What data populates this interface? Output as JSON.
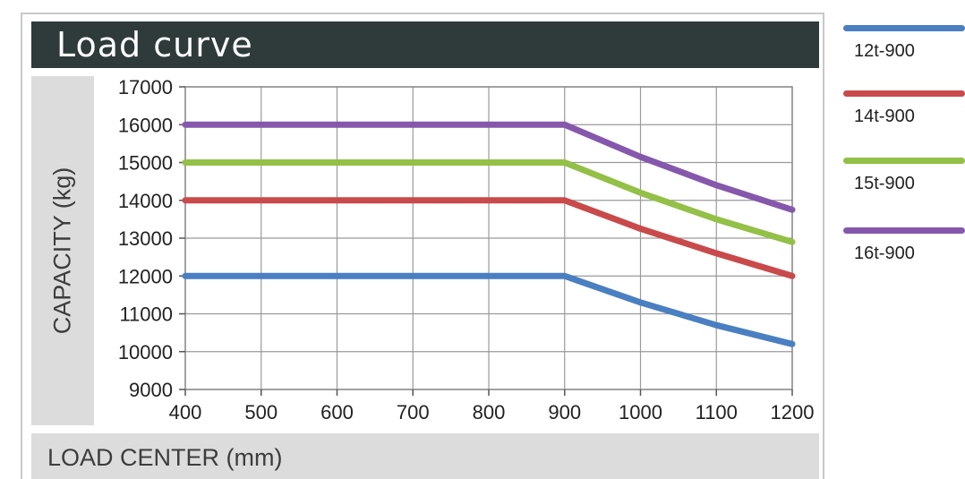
{
  "chart_data": {
    "type": "line",
    "title": "Load curve",
    "xlabel": "LOAD CENTER (mm)",
    "ylabel": "CAPACITY (kg)",
    "xlim": [
      400,
      1200
    ],
    "ylim": [
      9000,
      17000
    ],
    "x_ticks": [
      400,
      500,
      600,
      700,
      800,
      900,
      1000,
      1100,
      1200
    ],
    "y_ticks": [
      9000,
      10000,
      11000,
      12000,
      13000,
      14000,
      15000,
      16000,
      17000
    ],
    "x_tick_labels": [
      "400",
      "500",
      "600",
      "700",
      "800",
      "900",
      "1000",
      "1100",
      "1200"
    ],
    "y_tick_labels": [
      "9000",
      "10000",
      "11000",
      "12000",
      "13000",
      "14000",
      "15000",
      "16000",
      "17000"
    ],
    "grid": true,
    "legend_position": "right",
    "x": [
      400,
      900,
      1000,
      1100,
      1200
    ],
    "series": [
      {
        "name": "12t-900",
        "color": "#4a7fc1",
        "values": [
          12000,
          12000,
          11300,
          10700,
          10200
        ]
      },
      {
        "name": "14t-900",
        "color": "#c94a4a",
        "values": [
          14000,
          14000,
          13250,
          12600,
          12000
        ]
      },
      {
        "name": "15t-900",
        "color": "#93c047",
        "values": [
          15000,
          15000,
          14200,
          13500,
          12900
        ]
      },
      {
        "name": "16t-900",
        "color": "#8558ac",
        "values": [
          16000,
          16000,
          15150,
          14400,
          13750
        ]
      }
    ]
  }
}
